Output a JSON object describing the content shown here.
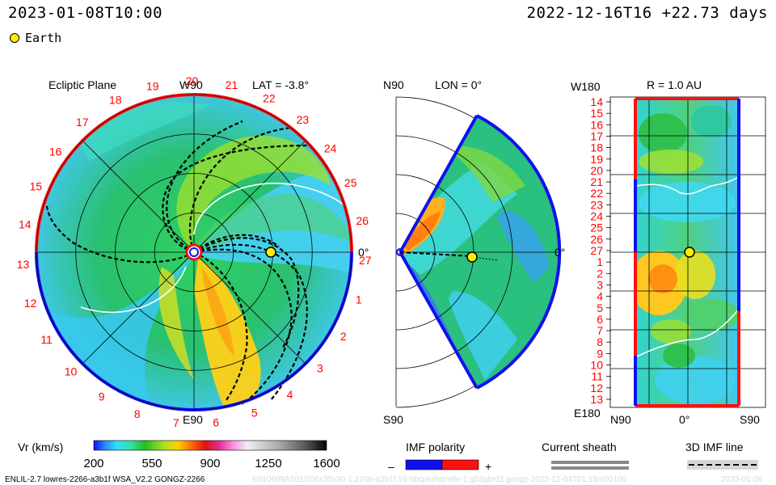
{
  "header": {
    "datetime": "2023-01-08T10:00",
    "reference": "2022-12-16T16 +22.73 days",
    "legend_earth": "Earth"
  },
  "colors": {
    "positive_polarity": "#ff1010",
    "negative_polarity": "#1010ee",
    "earth": "#ffee00",
    "radial_dial_labels": "#ff0000"
  },
  "chart_data": [
    {
      "type": "heatmap",
      "name": "ecliptic-plane",
      "title_left": "Ecliptic Plane",
      "title_center": "W90",
      "title_right": "LAT = -3.8°",
      "bottom_label": "E90",
      "right_label": "0°",
      "carrington_labels": [
        "19",
        "20",
        "21",
        "22",
        "23",
        "24",
        "25",
        "26",
        "27",
        "1",
        "2",
        "3",
        "4",
        "5",
        "6",
        "7",
        "8",
        "9",
        "10",
        "11",
        "12",
        "13",
        "14",
        "15",
        "16",
        "17",
        "18"
      ],
      "earth": {
        "r_au": 1.0,
        "lon_deg": 0
      }
    },
    {
      "type": "heatmap",
      "name": "meridional-plane",
      "title_left": "N90",
      "title_right": "LON = 0°",
      "bottom_label": "S90",
      "right_label": "0°",
      "earth": {
        "r_au": 1.0,
        "lat_deg": 0
      }
    },
    {
      "type": "heatmap",
      "name": "radial-map",
      "title_left": "W180",
      "title_right": "R = 1.0 AU",
      "bottom_left_label": "E180",
      "x_tick_labels": [
        "N90",
        "0°",
        "S90"
      ],
      "y_tick_labels": [
        "14",
        "15",
        "16",
        "17",
        "18",
        "19",
        "20",
        "21",
        "22",
        "23",
        "24",
        "25",
        "26",
        "27",
        "1",
        "2",
        "3",
        "4",
        "5",
        "6",
        "7",
        "8",
        "9",
        "10",
        "11",
        "12",
        "13"
      ]
    },
    {
      "type": "colorbar",
      "name": "vr-colorbar",
      "label": "Vr (km/s)",
      "tick_labels": [
        "200",
        "550",
        "900",
        "1250",
        "1600"
      ],
      "range": [
        200,
        1600
      ]
    }
  ],
  "legends": {
    "imf_title": "IMF polarity",
    "minus": "–",
    "plus": "+",
    "sheath_title": "Current sheath",
    "imf_line_title": "3D IMF line"
  },
  "footer": {
    "model": "ENLIL-2.7 lowres-2266-a3b1f WSA_V2.2 GONGZ-2266",
    "run_id": "E010609A501/256x30x90-1.2266-a3b1f.16-hbcp/umbrelle-1.g53qbrd2.gongz-2022-12-04T01:15m00100",
    "date_stamp": "2023-01-06"
  }
}
